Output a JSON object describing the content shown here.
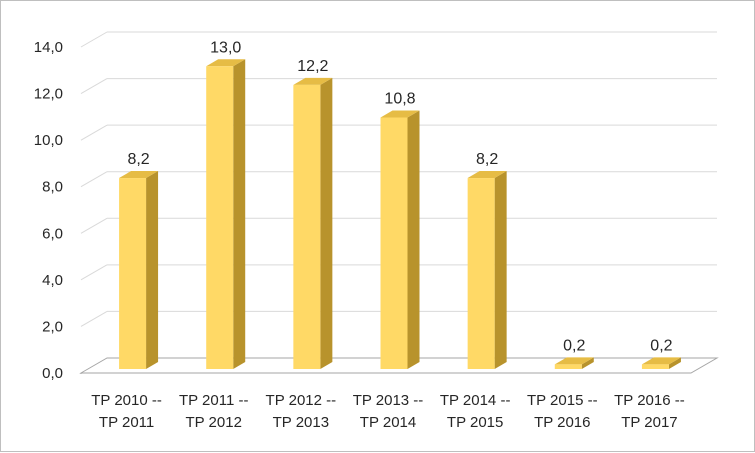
{
  "chart_data": {
    "type": "bar",
    "categories": [
      [
        "TP 2010 --",
        "TP 2011"
      ],
      [
        "TP 2011 --",
        "TP 2012"
      ],
      [
        "TP 2012 --",
        "TP 2013"
      ],
      [
        "TP 2013 --",
        "TP 2014"
      ],
      [
        "TP 2014 --",
        "TP 2015"
      ],
      [
        "TP 2015 --",
        "TP 2016"
      ],
      [
        "TP 2016 --",
        "TP 2017"
      ]
    ],
    "values": [
      8.2,
      13.0,
      12.2,
      10.8,
      8.2,
      0.2,
      0.2
    ],
    "data_labels": [
      "8,2",
      "13,0",
      "12,2",
      "10,8",
      "8,2",
      "0,2",
      "0,2"
    ],
    "y_ticks": [
      "0,0",
      "2,0",
      "4,0",
      "6,0",
      "8,0",
      "10,0",
      "12,0",
      "14,0"
    ],
    "ylim": [
      0,
      14
    ],
    "grid": true,
    "style": "3d-column",
    "colors": {
      "bar_front": "#FFD966",
      "bar_side": "#B8932C",
      "bar_top": "#E6BC45",
      "grid": "#d9d9d9",
      "axis": "#a6a6a6"
    }
  }
}
